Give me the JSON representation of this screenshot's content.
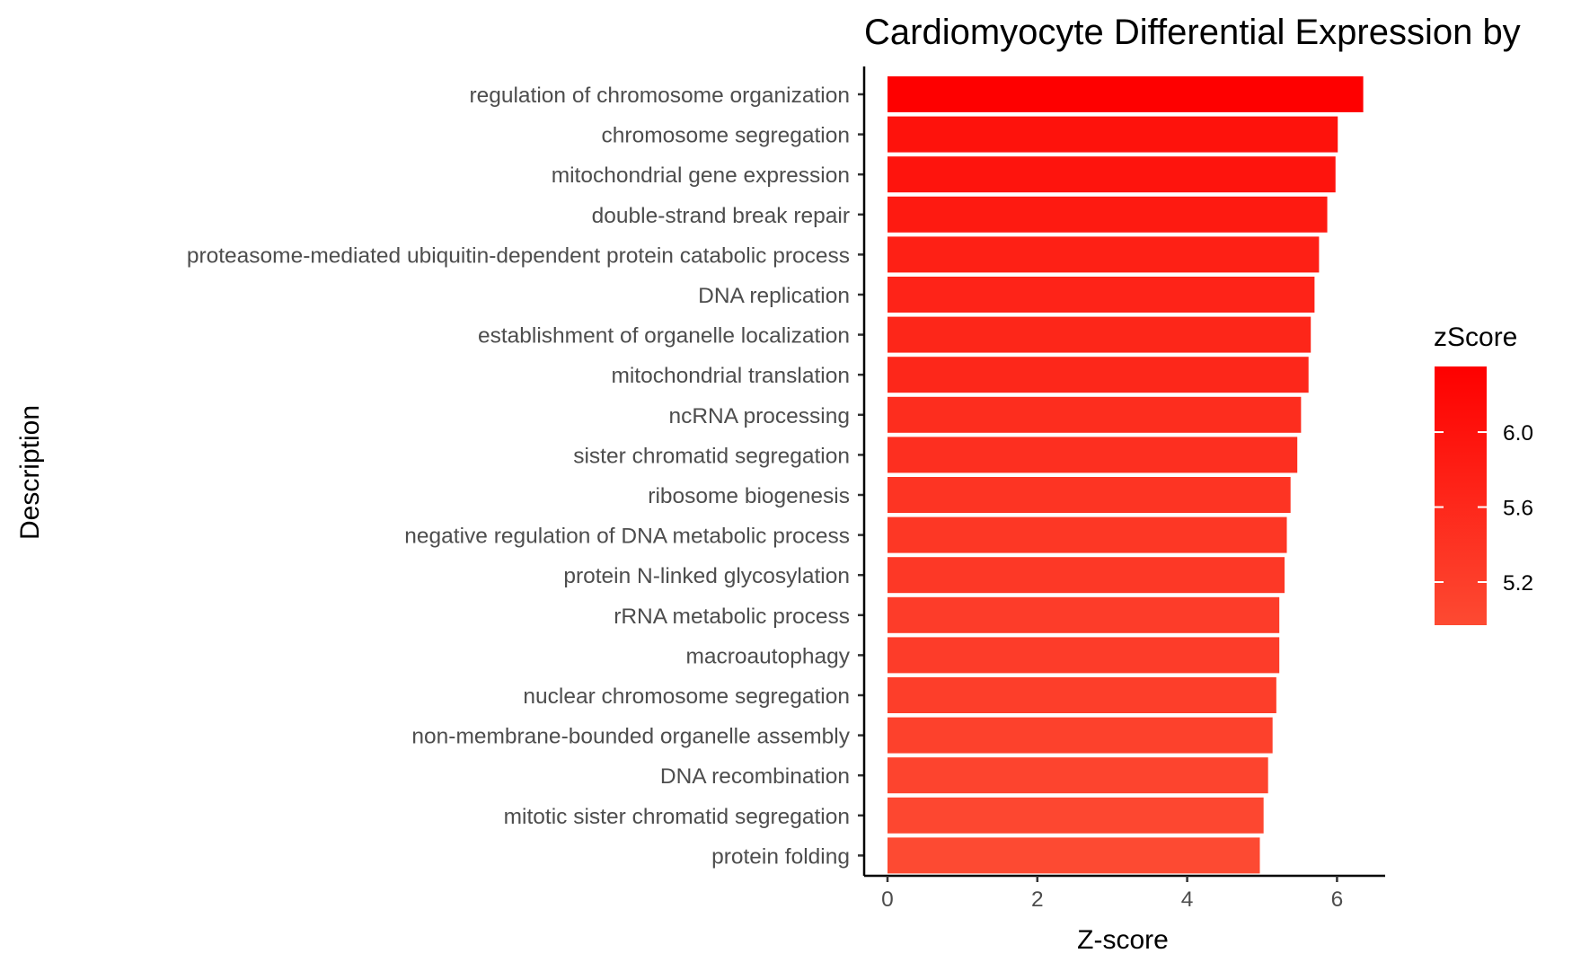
{
  "chart_data": {
    "type": "bar",
    "orientation": "horizontal",
    "title": "Cardiomyocyte Differential Expression by",
    "xlabel": "Z-score",
    "ylabel": "Description",
    "xlim": [
      0,
      6.6
    ],
    "xticks": [
      0,
      2,
      4,
      6
    ],
    "grid": false,
    "categories": [
      "regulation of chromosome organization",
      "chromosome segregation",
      "mitochondrial gene expression",
      "double-strand break repair",
      "proteasome-mediated ubiquitin-dependent protein catabolic process",
      "DNA replication",
      "establishment of organelle localization",
      "mitochondrial translation",
      "ncRNA processing",
      "sister chromatid segregation",
      "ribosome biogenesis",
      "negative regulation of DNA metabolic process",
      "protein N-linked glycosylation",
      "rRNA metabolic process",
      "macroautophagy",
      "nuclear chromosome segregation",
      "non-membrane-bounded organelle assembly",
      "DNA recombination",
      "mitotic sister chromatid segregation",
      "protein folding"
    ],
    "values": [
      6.35,
      6.01,
      5.98,
      5.87,
      5.76,
      5.7,
      5.65,
      5.62,
      5.52,
      5.47,
      5.38,
      5.33,
      5.3,
      5.23,
      5.23,
      5.19,
      5.14,
      5.08,
      5.02,
      4.97
    ],
    "legend": {
      "title": "zScore",
      "position": "right",
      "ticks": [
        5.2,
        5.6,
        6.0
      ],
      "tick_labels": [
        "5.2",
        "5.6",
        "6.0"
      ],
      "range": [
        4.97,
        6.35
      ],
      "color_low": "#fd4a32",
      "color_high": "#fe0000"
    }
  }
}
